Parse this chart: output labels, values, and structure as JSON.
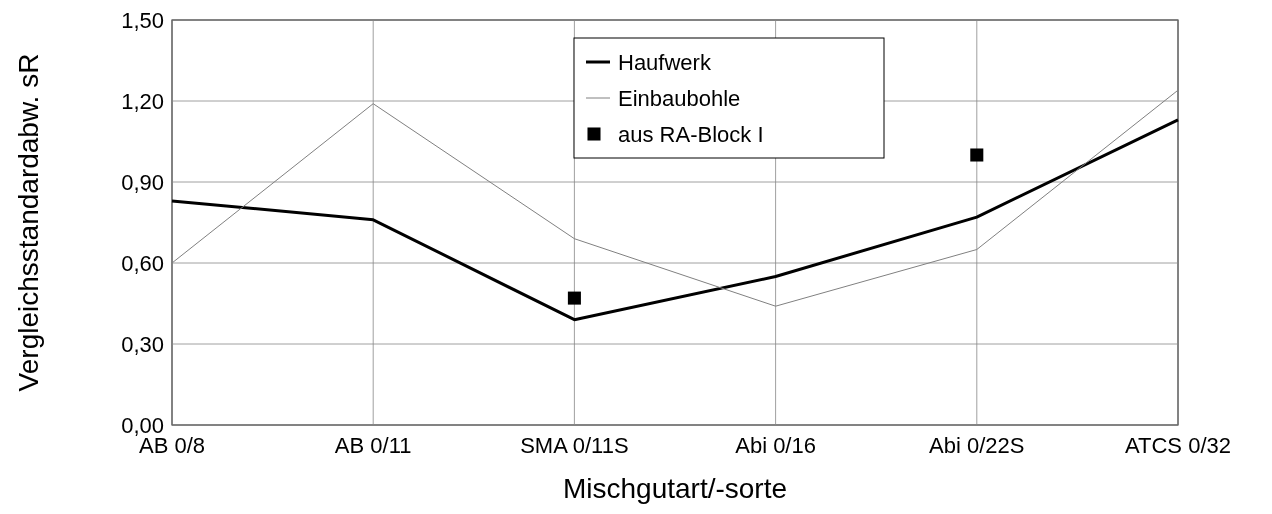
{
  "chart_data": {
    "type": "line",
    "xlabel": "Mischgutart/-sorte",
    "ylabel": "Vergleichsstandardabw. sR",
    "categories": [
      "AB 0/8",
      "AB 0/11",
      "SMA 0/11S",
      "Abi 0/16",
      "Abi 0/22S",
      "ATCS 0/32"
    ],
    "series": [
      {
        "name": "Haufwerk",
        "color": "#000000",
        "values": [
          0.83,
          0.76,
          0.39,
          0.55,
          0.77,
          1.13
        ]
      },
      {
        "name": "Einbaubohle",
        "color": "#808080",
        "values": [
          0.6,
          1.19,
          0.69,
          0.44,
          0.65,
          1.24
        ]
      },
      {
        "name": "aus RA-Block I",
        "type": "scatter",
        "marker": "square",
        "color": "#000000",
        "x": [
          "SMA 0/11S",
          "Abi 0/22S"
        ],
        "values": [
          0.47,
          1.0
        ]
      }
    ],
    "ylim": [
      0,
      1.5
    ],
    "yticks": [
      {
        "value": 0,
        "label": "0,00"
      },
      {
        "value": 0.3,
        "label": "0,30"
      },
      {
        "value": 0.6,
        "label": "0,60"
      },
      {
        "value": 0.9,
        "label": "0,90"
      },
      {
        "value": 1.2,
        "label": "1,20"
      },
      {
        "value": 1.5,
        "label": "1,50"
      }
    ],
    "grid": true,
    "legend": "top",
    "marker": "none",
    "line_style": "solid"
  }
}
